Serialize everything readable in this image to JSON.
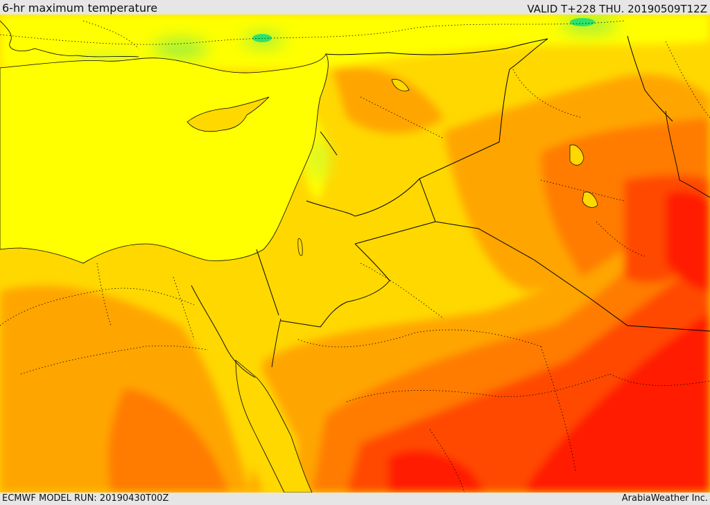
{
  "header": {
    "title": "6-hr maximum temperature",
    "valid": "VALID T+228 THU. 20190509T12Z"
  },
  "footer": {
    "model_run": "ECMWF MODEL RUN: 20190430T00Z",
    "credit": "ArabiaWeather Inc."
  },
  "colors": {
    "cool_green": "#2ee36a",
    "light_green": "#9ef03c",
    "yellow_green": "#d8f52a",
    "yellow": "#ffff00",
    "yellow_orange": "#ffd800",
    "orange": "#ffa500",
    "dark_orange": "#ff7b00",
    "red_orange": "#ff4a00",
    "red": "#ff1a00",
    "border": "#000000"
  }
}
